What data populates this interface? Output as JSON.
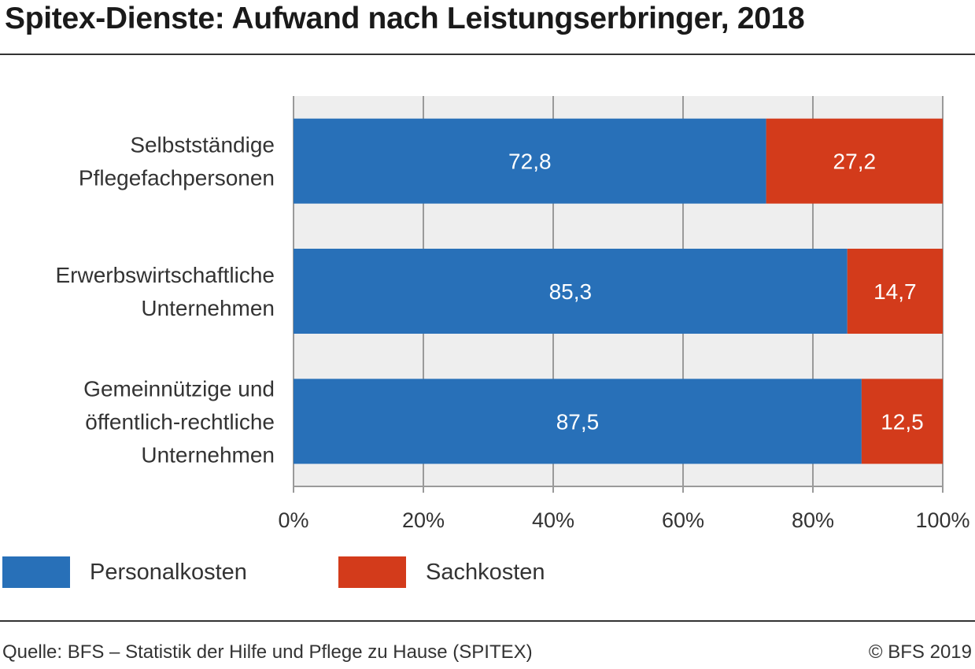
{
  "title": "Spitex-Dienste: Aufwand nach Leistungserbringer, 2018",
  "colors": {
    "personal": "#2870b8",
    "sach": "#d33b1b",
    "plot_bg": "#eeeeee",
    "grid": "#9a9a9a"
  },
  "chart_data": {
    "type": "bar",
    "orientation": "horizontal",
    "stacked": true,
    "categories": [
      [
        "Selbstständige",
        "Pflegefachpersonen"
      ],
      [
        "Erwerbswirtschaftliche",
        "Unternehmen"
      ],
      [
        "Gemeinnützige und",
        "öffentlich-rechtliche",
        "Unternehmen"
      ]
    ],
    "series": [
      {
        "name": "Personalkosten",
        "values": [
          72.8,
          85.3,
          87.5
        ],
        "labels": [
          "72,8",
          "85,3",
          "87,5"
        ]
      },
      {
        "name": "Sachkosten",
        "values": [
          27.2,
          14.7,
          12.5
        ],
        "labels": [
          "27,2",
          "14,7",
          "12,5"
        ]
      }
    ],
    "xlim": [
      0,
      100
    ],
    "xticks": [
      0,
      20,
      40,
      60,
      80,
      100
    ],
    "xtick_labels": [
      "0%",
      "20%",
      "40%",
      "60%",
      "80%",
      "100%"
    ],
    "grid": true,
    "legend_position": "bottom-left"
  },
  "footer": {
    "source": "Quelle: BFS – Statistik der Hilfe und Pflege zu Hause (SPITEX)",
    "copyright": "© BFS 2019"
  }
}
